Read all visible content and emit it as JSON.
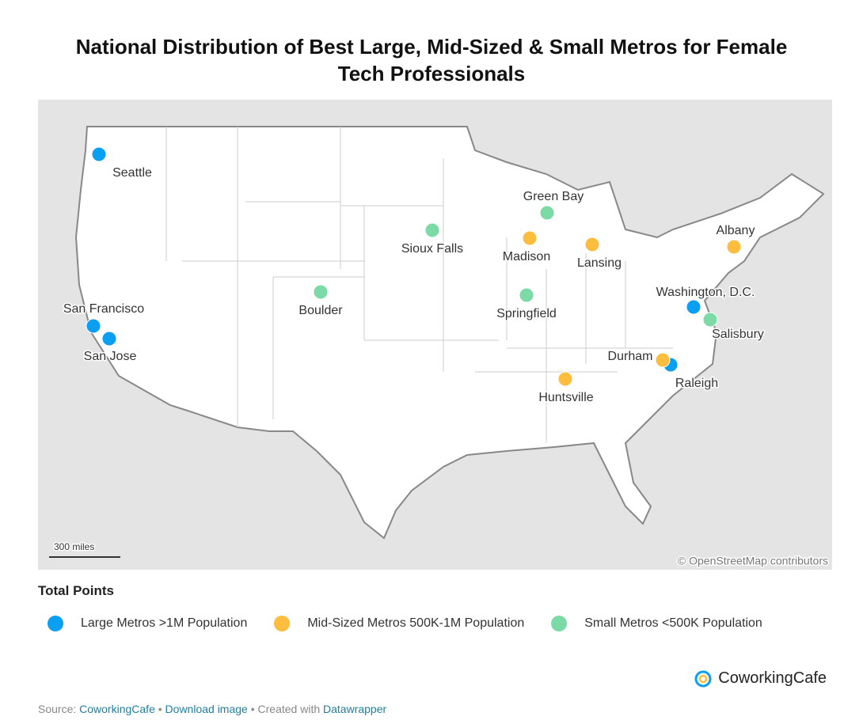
{
  "title": "National Distribution of Best Large, Mid-Sized & Small Metros for Female Tech Professionals",
  "map": {
    "scale_label": "300 miles",
    "attribution": "© OpenStreetMap contributors"
  },
  "legend": {
    "title": "Total Points",
    "groups": [
      {
        "label": "Large Metros >1M Population",
        "color": "#0b9ff2",
        "cities": [
          "Seattle",
          "San Francisco",
          "San Jose",
          "Washington, D.C.",
          "Raleigh"
        ]
      },
      {
        "label": "Mid-Sized Metros 500K-1M Population",
        "color": "#fdbd3e",
        "cities": [
          "Madison",
          "Lansing",
          "Albany",
          "Durham",
          "Huntsville"
        ]
      },
      {
        "label": "Small Metros <500K Population",
        "color": "#7bdaa5",
        "cities": [
          "Green Bay",
          "Sioux Falls",
          "Boulder",
          "Springfield",
          "Salisbury"
        ]
      }
    ]
  },
  "logo": "CoworkingCafe",
  "footer": {
    "source_label": "Source:",
    "source_link": "CoworkingCafe",
    "separator": "•",
    "download": "Download image",
    "created": "Created with",
    "tool": "Datawrapper"
  }
}
